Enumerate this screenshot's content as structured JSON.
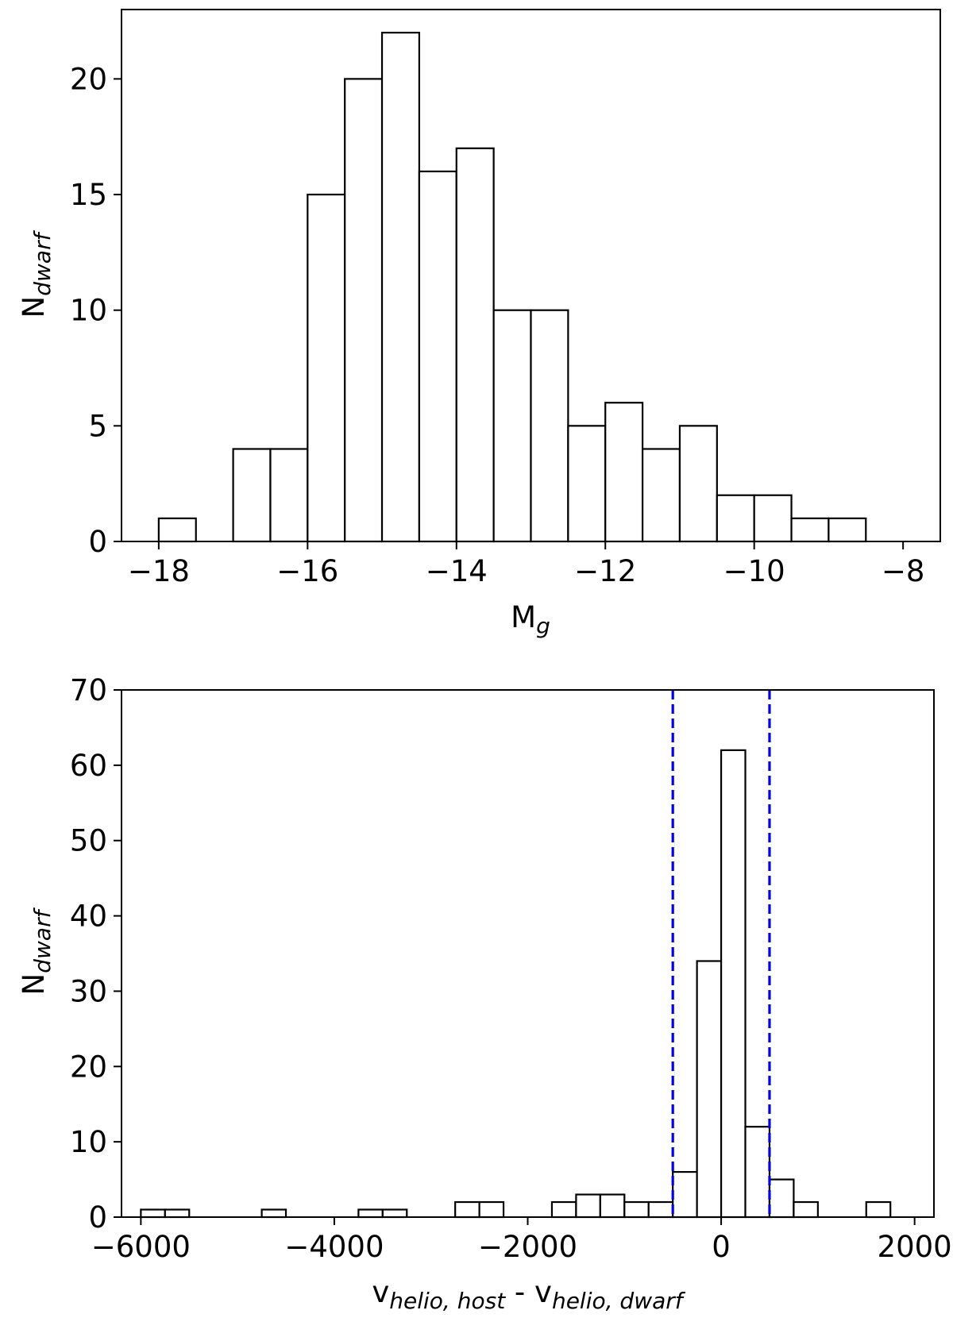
{
  "chart_data": [
    {
      "type": "bar",
      "title": "",
      "xlabel": "M",
      "xlabel_sub": "g",
      "ylabel": "N",
      "ylabel_sub": "dwarf",
      "xlim": [
        -18.5,
        -7.5
      ],
      "ylim": [
        0,
        23
      ],
      "bin_width": 0.5,
      "bin_edges_start": [
        -18.0,
        -17.0,
        -16.5,
        -16.0,
        -15.5,
        -15.0,
        -14.5,
        -14.0,
        -13.5,
        -13.0,
        -12.5,
        -12.0,
        -11.5,
        -11.0,
        -10.5,
        -10.0,
        -9.5,
        -9.0
      ],
      "values": [
        1,
        4,
        4,
        15,
        20,
        22,
        16,
        17,
        10,
        10,
        5,
        6,
        4,
        5,
        2,
        2,
        1,
        1
      ],
      "xticks": [
        -18,
        -16,
        -14,
        -12,
        -10,
        -8
      ],
      "xtick_labels": [
        "−18",
        "−16",
        "−14",
        "−12",
        "−10",
        "−8"
      ],
      "yticks": [
        0,
        5,
        10,
        15,
        20
      ],
      "ytick_labels": [
        "0",
        "5",
        "10",
        "15",
        "20"
      ],
      "grid": false,
      "bar_color": "#ffffff",
      "edge_color": "#000000"
    },
    {
      "type": "bar",
      "title": "",
      "xlabel": "v",
      "xlabel_sub1": "helio, host",
      "xlabel_mid": " - v",
      "xlabel_sub2": "helio, dwarf",
      "ylabel": "N",
      "ylabel_sub": "dwarf",
      "xlim": [
        -6200,
        2200
      ],
      "ylim": [
        0,
        70
      ],
      "bin_width": 250,
      "bin_edges_start": [
        -6000,
        -5750,
        -4750,
        -3750,
        -3500,
        -2750,
        -2500,
        -1750,
        -1500,
        -1250,
        -1000,
        -750,
        -500,
        -250,
        0,
        250,
        500,
        750,
        1500
      ],
      "values": [
        1,
        1,
        1,
        1,
        1,
        2,
        2,
        2,
        3,
        3,
        2,
        2,
        6,
        34,
        62,
        12,
        5,
        2,
        2
      ],
      "vlines": [
        -500,
        500
      ],
      "vline_color": "#0000ee",
      "xticks": [
        -6000,
        -4000,
        -2000,
        0,
        2000
      ],
      "xtick_labels": [
        "−6000",
        "−4000",
        "−2000",
        "0",
        "2000"
      ],
      "yticks": [
        0,
        10,
        20,
        30,
        40,
        50,
        60,
        70
      ],
      "ytick_labels": [
        "0",
        "10",
        "20",
        "30",
        "40",
        "50",
        "60",
        "70"
      ],
      "grid": false,
      "bar_color": "#ffffff",
      "edge_color": "#000000"
    }
  ]
}
